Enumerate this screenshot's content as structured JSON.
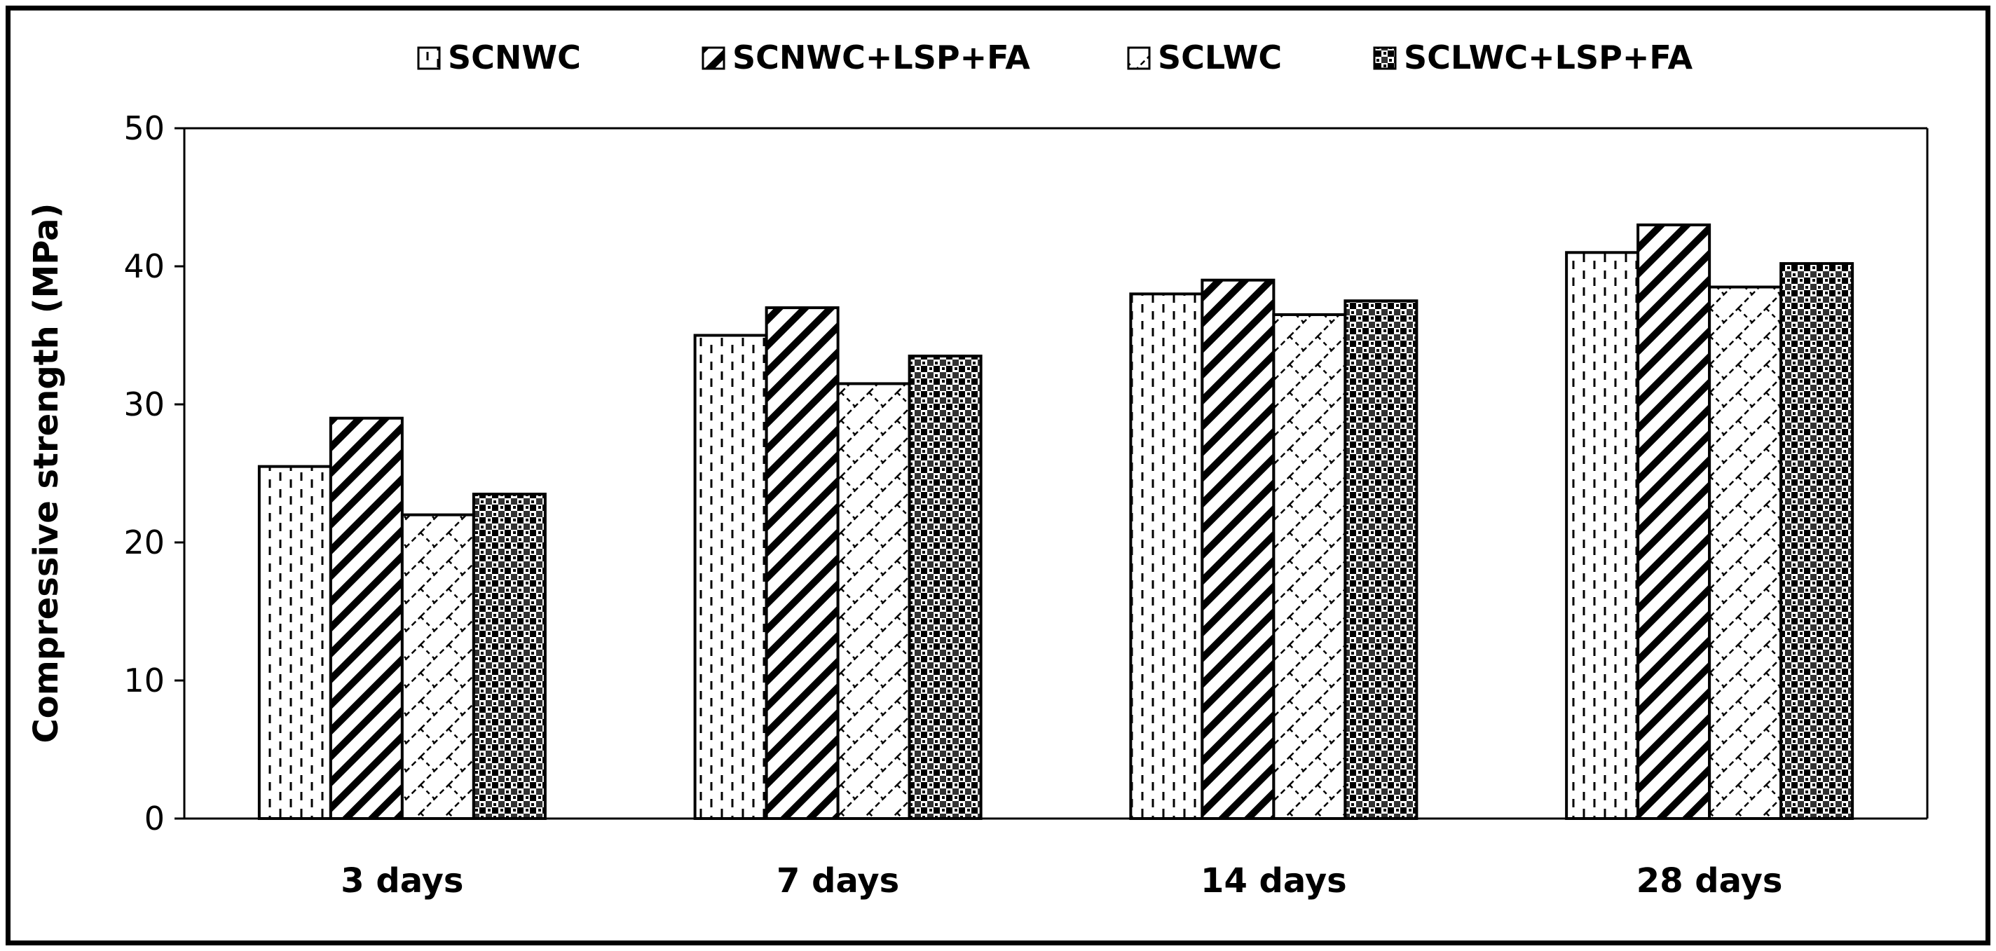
{
  "chart_data": {
    "type": "bar",
    "title": "",
    "xlabel": "",
    "ylabel": "Compressive strength (MPa)",
    "ylim": [
      0,
      50
    ],
    "yticks": [
      0,
      10,
      20,
      30,
      40,
      50
    ],
    "grid": false,
    "legend_position": "top",
    "categories": [
      "3 days",
      "7 days",
      "14 days",
      "28 days"
    ],
    "series": [
      {
        "name": "SCNWC",
        "pattern": "vertical-dashes",
        "values": [
          25.5,
          35.0,
          38.0,
          41.0
        ]
      },
      {
        "name": "SCNWC+LSP+FA",
        "pattern": "wide-diagonal",
        "values": [
          29.0,
          37.0,
          39.0,
          43.0
        ]
      },
      {
        "name": "SCLWC",
        "pattern": "diagonal-brick",
        "values": [
          22.0,
          31.5,
          36.5,
          38.5
        ]
      },
      {
        "name": "SCLWC+LSP+FA",
        "pattern": "checker-grid",
        "values": [
          23.5,
          33.5,
          37.5,
          40.2
        ]
      }
    ]
  },
  "colors": {
    "ink": "#000000",
    "background": "#ffffff"
  }
}
